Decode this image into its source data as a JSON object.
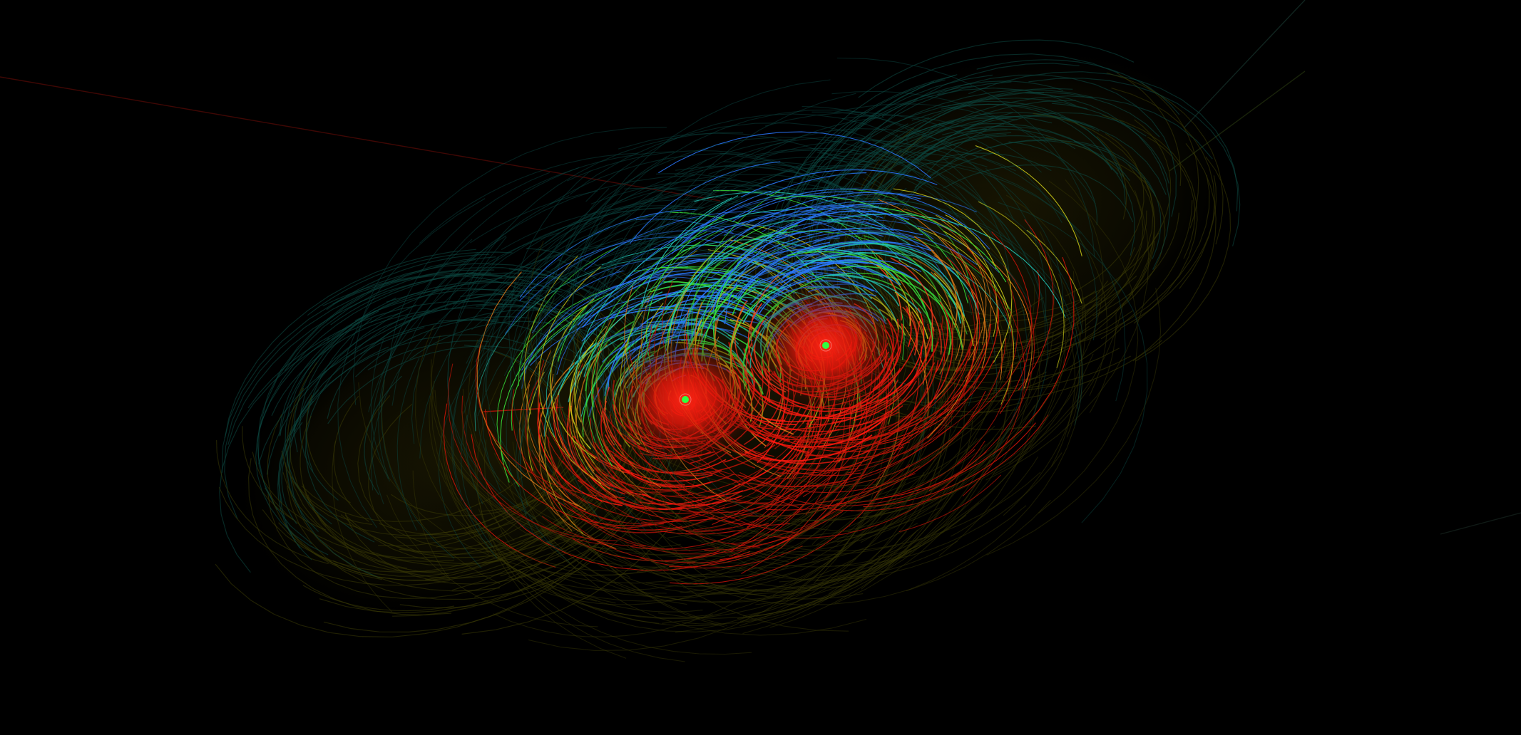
{
  "scene": {
    "description_free": true,
    "background": "#000000",
    "palette": {
      "core": "#ff1a10",
      "inner": "#ff3b1e",
      "mid_red": "#c81408",
      "orange": "#e07a18",
      "yellow": "#c8c818",
      "green": "#38e03a",
      "cyan": "#22c8b8",
      "blue": "#2a78ff",
      "outer_olive": "#3a3a06",
      "outer_teal": "#0c4a44",
      "center_dot": "#30ff40"
    },
    "attractors": [
      {
        "name": "left-attractor",
        "center_dot_color": "#30ff40"
      },
      {
        "name": "right-attractor",
        "center_dot_color": "#30ff40"
      }
    ]
  }
}
